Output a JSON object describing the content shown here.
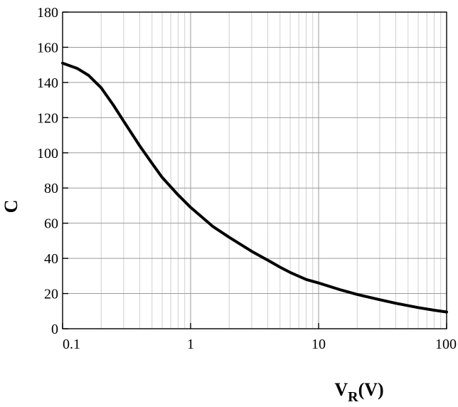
{
  "chart_data": {
    "type": "line",
    "title": "",
    "xlabel": {
      "main": "V",
      "sub": "R",
      "unit": "(V)"
    },
    "ylabel": "C",
    "x_scale": "log",
    "xlim": [
      0.1,
      100
    ],
    "ylim": [
      0,
      180
    ],
    "x_ticks": [
      {
        "value": 0.1,
        "label": "0.1"
      },
      {
        "value": 1,
        "label": "1"
      },
      {
        "value": 10,
        "label": "10"
      },
      {
        "value": 100,
        "label": "100"
      }
    ],
    "y_ticks": [
      {
        "value": 0,
        "label": "0"
      },
      {
        "value": 20,
        "label": "20"
      },
      {
        "value": 40,
        "label": "40"
      },
      {
        "value": 60,
        "label": "60"
      },
      {
        "value": 80,
        "label": "80"
      },
      {
        "value": 100,
        "label": "100"
      },
      {
        "value": 120,
        "label": "120"
      },
      {
        "value": 140,
        "label": "140"
      },
      {
        "value": 160,
        "label": "160"
      },
      {
        "value": 180,
        "label": "180"
      }
    ],
    "grid": true,
    "series": [
      {
        "x": [
          0.1,
          0.13,
          0.16,
          0.2,
          0.25,
          0.3,
          0.4,
          0.5,
          0.6,
          0.8,
          1,
          1.5,
          2,
          3,
          4,
          5,
          6,
          8,
          10,
          15,
          20,
          30,
          40,
          60,
          80,
          100
        ],
        "y": [
          151,
          148,
          144,
          137,
          127,
          118,
          104,
          94,
          86,
          76,
          69,
          58,
          52,
          44,
          39,
          35,
          32,
          28,
          26,
          22,
          19.5,
          16.5,
          14.5,
          12,
          10.5,
          9.5
        ]
      }
    ]
  }
}
